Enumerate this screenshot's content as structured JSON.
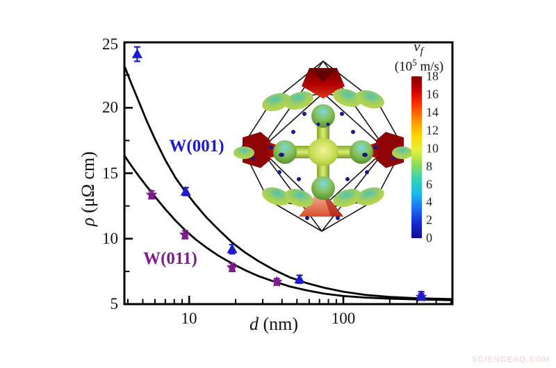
{
  "watermark": "SCIENCEAQ.COM",
  "chart_data": {
    "type": "scatter",
    "xscale": "log",
    "xlim": [
      3.8,
      510
    ],
    "ylim": [
      5,
      25
    ],
    "xlabel_parts": {
      "var": "d",
      "rest": " (nm)"
    },
    "ylabel_parts": {
      "var": "ρ",
      "rest": " (μΩ cm)"
    },
    "xticks_major": [
      10,
      100
    ],
    "xtick_labels": [
      "10",
      "100"
    ],
    "xticks_minor": [
      4,
      5,
      6,
      7,
      8,
      9,
      20,
      30,
      40,
      50,
      60,
      70,
      80,
      90,
      200,
      300,
      400,
      500
    ],
    "yticks_major": [
      5,
      10,
      15,
      20,
      25
    ],
    "ytick_labels_top_to_bottom": [
      "25",
      "20",
      "15",
      "10",
      "5"
    ],
    "yticks_minor": [
      7.5,
      12.5,
      17.5,
      22.5
    ],
    "grid": false,
    "series": [
      {
        "name": "W(001)",
        "color": "#1c1ccd",
        "marker": "triangle",
        "points": [
          {
            "d": 4.6,
            "rho": 24.1,
            "err": 0.55
          },
          {
            "d": 9.5,
            "rho": 13.6,
            "err": 0.3
          },
          {
            "d": 19,
            "rho": 9.2,
            "err": 0.35
          },
          {
            "d": 52,
            "rho": 6.9,
            "err": 0.3
          },
          {
            "d": 320,
            "rho": 5.65,
            "err": 0.3
          }
        ],
        "fit": [
          [
            3.8,
            23.2
          ],
          [
            4.2,
            21.9
          ],
          [
            4.7,
            20.5
          ],
          [
            5.3,
            19.0
          ],
          [
            6.0,
            17.6
          ],
          [
            7.0,
            16.0
          ],
          [
            8.2,
            14.6
          ],
          [
            9.5,
            13.55
          ],
          [
            11,
            12.6
          ],
          [
            13,
            11.6
          ],
          [
            15.5,
            10.7
          ],
          [
            19,
            9.7
          ],
          [
            23,
            8.95
          ],
          [
            28,
            8.3
          ],
          [
            35,
            7.65
          ],
          [
            45,
            7.05
          ],
          [
            58,
            6.6
          ],
          [
            75,
            6.25
          ],
          [
            100,
            5.95
          ],
          [
            140,
            5.7
          ],
          [
            200,
            5.55
          ],
          [
            300,
            5.45
          ],
          [
            510,
            5.38
          ]
        ]
      },
      {
        "name": "W(011)",
        "color": "#7c1d8a",
        "marker": "star",
        "points": [
          {
            "d": 5.7,
            "rho": 13.35,
            "err": 0.3
          },
          {
            "d": 9.4,
            "rho": 10.3,
            "err": 0.3
          },
          {
            "d": 19,
            "rho": 7.8,
            "err": 0.3
          },
          {
            "d": 37,
            "rho": 6.7,
            "err": 0.25
          },
          {
            "d": 320,
            "rho": 5.55,
            "err": 0.25
          }
        ],
        "fit": [
          [
            3.8,
            16.35
          ],
          [
            4.2,
            15.6
          ],
          [
            4.7,
            14.8
          ],
          [
            5.3,
            14.0
          ],
          [
            6.0,
            13.2
          ],
          [
            7.0,
            12.25
          ],
          [
            8.2,
            11.35
          ],
          [
            9.5,
            10.6
          ],
          [
            11,
            9.95
          ],
          [
            13,
            9.3
          ],
          [
            15.5,
            8.7
          ],
          [
            19,
            8.1
          ],
          [
            23,
            7.6
          ],
          [
            28,
            7.15
          ],
          [
            35,
            6.75
          ],
          [
            45,
            6.35
          ],
          [
            58,
            6.05
          ],
          [
            75,
            5.8
          ],
          [
            100,
            5.62
          ],
          [
            140,
            5.5
          ],
          [
            200,
            5.42
          ],
          [
            300,
            5.36
          ],
          [
            510,
            5.3
          ]
        ]
      }
    ]
  },
  "inset": {
    "title_var": "v",
    "title_sub": "f",
    "unit_prefix": "(10",
    "unit_exp": "5",
    "unit_suffix": " m/s)",
    "colorbar": {
      "ticks_top_to_bottom": [
        "18",
        "16",
        "14",
        "12",
        "10",
        "8",
        "6",
        "4",
        "2",
        "0"
      ],
      "min": 0,
      "max": 18,
      "colors_top_to_bottom": [
        "#7b0000",
        "#d40000",
        "#ff3b00",
        "#ff9100",
        "#ffd500",
        "#e8f03c",
        "#8fdc5a",
        "#35d2b4",
        "#19b9ee",
        "#1e6cf0",
        "#1628d2",
        "#0f0f8e"
      ]
    }
  }
}
